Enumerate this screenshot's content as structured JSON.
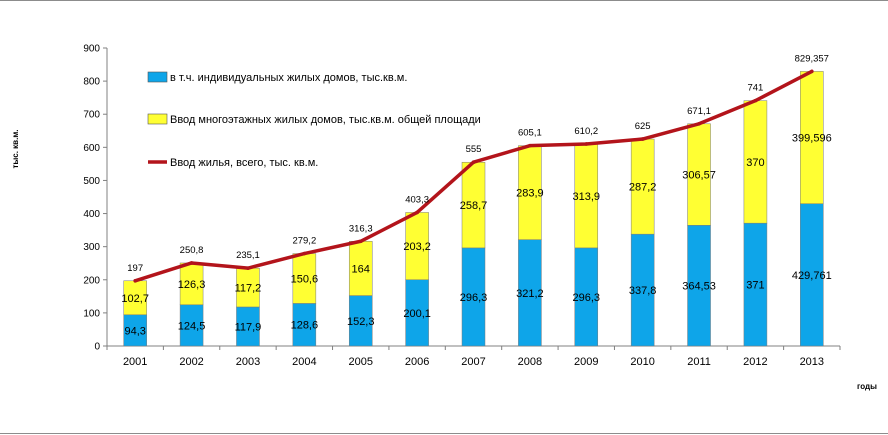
{
  "chart_data": {
    "type": "bar",
    "stacked": true,
    "categories": [
      "2001",
      "2002",
      "2003",
      "2004",
      "2005",
      "2006",
      "2007",
      "2008",
      "2009",
      "2010",
      "2011",
      "2012",
      "2013"
    ],
    "series": [
      {
        "name": "в т.ч. индивидуальных жилых домов, тыс.кв.м.",
        "kind": "bar",
        "color": "#0ea5e9",
        "values": [
          94.3,
          124.5,
          117.9,
          128.6,
          152.3,
          200.1,
          296.3,
          321.2,
          296.3,
          337.8,
          364.53,
          371,
          429.761
        ],
        "labels": [
          "94,3",
          "124,5",
          "117,9",
          "128,6",
          "152,3",
          "200,1",
          "296,3",
          "321,2",
          "296,3",
          "337,8",
          "364,53",
          "371",
          "429,761"
        ]
      },
      {
        "name": "Ввод многоэтажных жилых домов, тыс.кв.м. общей площади",
        "kind": "bar",
        "color": "#ffff33",
        "values": [
          102.7,
          126.3,
          117.2,
          150.6,
          164,
          203.2,
          258.7,
          283.9,
          313.9,
          287.2,
          306.57,
          370,
          399.596
        ],
        "labels": [
          "102,7",
          "126,3",
          "117,2",
          "150,6",
          "164",
          "203,2",
          "258,7",
          "283,9",
          "313,9",
          "287,2",
          "306,57",
          "370",
          "399,596"
        ]
      },
      {
        "name": "Ввод жилья,  всего, тыс. кв.м.",
        "kind": "line",
        "color": "#b3141b",
        "values": [
          197,
          250.8,
          235.1,
          279.2,
          316.3,
          403.3,
          555,
          605.1,
          610.2,
          625,
          671.1,
          741,
          829.357
        ],
        "labels": [
          "197",
          "250,8",
          "235,1",
          "279,2",
          "316,3",
          "403,3",
          "555",
          "605,1",
          "610,2",
          "625",
          "671,1",
          "741",
          "829,357"
        ]
      }
    ],
    "ylim": [
      0,
      900
    ],
    "yticks": [
      0,
      100,
      200,
      300,
      400,
      500,
      600,
      700,
      800,
      900
    ],
    "ylabel": "тыс. кв.м.",
    "xlabel": "годы",
    "grid": false,
    "legend_position": "top-left"
  }
}
